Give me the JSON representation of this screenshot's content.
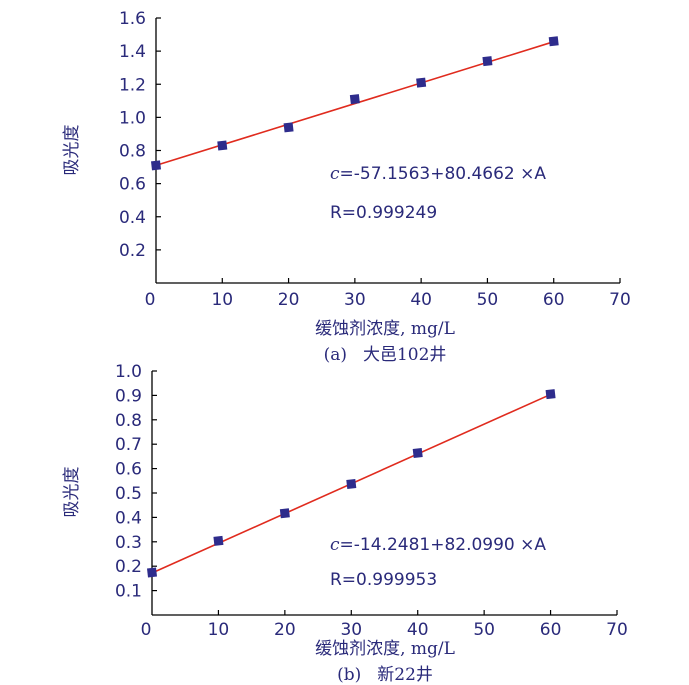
{
  "chart_data": [
    {
      "type": "scatter",
      "panel_label": "(a)",
      "caption": "大邑102井",
      "xlabel": "缓蚀剂浓度, mg/L",
      "ylabel": "吸光度",
      "xlim": [
        0,
        70
      ],
      "ylim": [
        0,
        1.6
      ],
      "x_ticks": [
        "0",
        "10",
        "20",
        "30",
        "40",
        "50",
        "60",
        "70"
      ],
      "y_ticks": [
        "0.2",
        "0.4",
        "0.6",
        "0.8",
        "1.0",
        "1.2",
        "1.4",
        "1.6"
      ],
      "points": [
        {
          "x": 0,
          "y": 0.71
        },
        {
          "x": 10,
          "y": 0.83
        },
        {
          "x": 20,
          "y": 0.94
        },
        {
          "x": 30,
          "y": 1.11
        },
        {
          "x": 40,
          "y": 1.21
        },
        {
          "x": 50,
          "y": 1.34
        },
        {
          "x": 60,
          "y": 1.46
        }
      ],
      "fit_line": {
        "x": [
          0,
          60
        ],
        "y": [
          0.71,
          1.457
        ]
      },
      "equation": {
        "var": "c",
        "rest": "=-57.1563+80.4662 ×A"
      },
      "r_text": "R=0.999249",
      "marker_color": "#2e2c8c",
      "line_color": "#e02b1e",
      "grid": false
    },
    {
      "type": "scatter",
      "panel_label": "(b)",
      "caption": "新22井",
      "xlabel": "缓蚀剂浓度, mg/L",
      "ylabel": "吸光度",
      "xlim": [
        0,
        70
      ],
      "ylim": [
        0,
        1.0
      ],
      "x_ticks": [
        "0",
        "10",
        "20",
        "30",
        "40",
        "50",
        "60",
        "70"
      ],
      "y_ticks": [
        "0.1",
        "0.2",
        "0.3",
        "0.4",
        "0.5",
        "0.6",
        "0.7",
        "0.8",
        "0.9",
        "1.0"
      ],
      "points": [
        {
          "x": 0,
          "y": 0.174
        },
        {
          "x": 10,
          "y": 0.304
        },
        {
          "x": 20,
          "y": 0.417
        },
        {
          "x": 30,
          "y": 0.537
        },
        {
          "x": 40,
          "y": 0.664
        },
        {
          "x": 60,
          "y": 0.905
        }
      ],
      "fit_line": {
        "x": [
          0,
          60
        ],
        "y": [
          0.172,
          0.904
        ]
      },
      "equation": {
        "var": "c",
        "rest": "=-14.2481+82.0990 ×A"
      },
      "r_text": "R=0.999953",
      "marker_color": "#2e2c8c",
      "line_color": "#e02b1e",
      "grid": false
    }
  ]
}
